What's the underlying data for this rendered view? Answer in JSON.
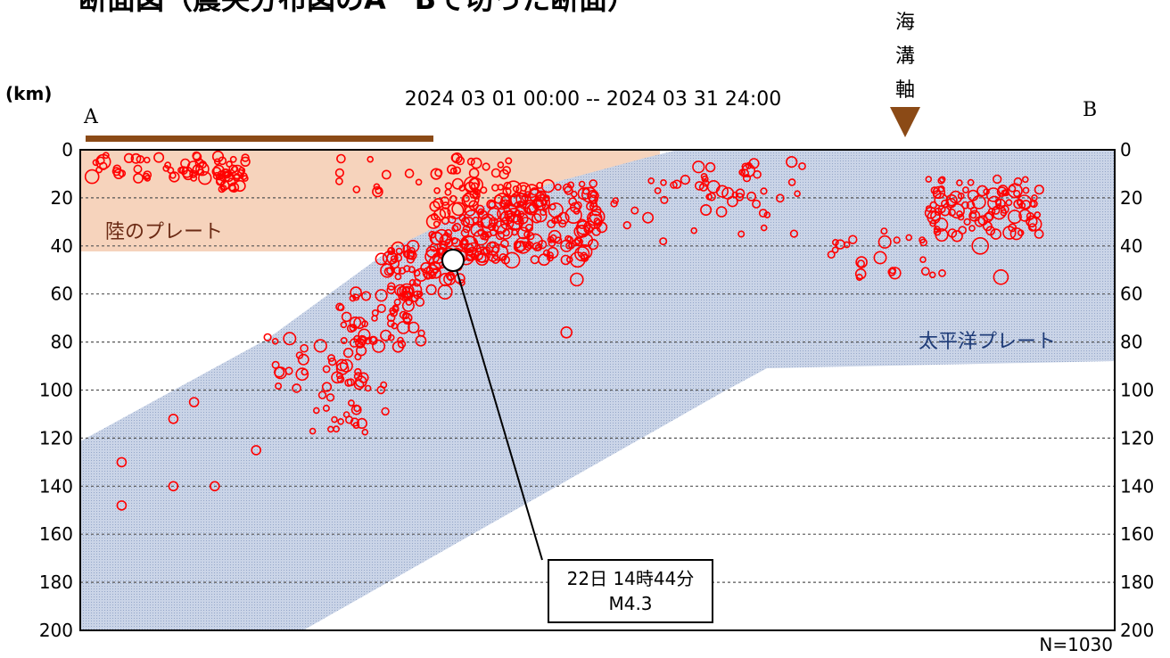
{
  "header": {
    "title": "断面図（震央分布図のA－Bで切った断面）",
    "period": "2024 03 01 00:00 -- 2024 03 31 24:00",
    "trench_label": [
      "海",
      "溝",
      "軸"
    ],
    "unit_label": "(km)",
    "point_a": "A",
    "point_b": "B"
  },
  "labels": {
    "land_plate": "陸のプレート",
    "pacific_plate": "太平洋プレート",
    "count": "N=1030"
  },
  "callout": {
    "line1": "22日 14時44分",
    "line2": "M4.3",
    "event_depth_km": 46
  },
  "colors": {
    "land_plate_fill": "#f6d3bc",
    "pacific_plate_fill": "#b9c6dc",
    "land_bar": "#8b4a16",
    "trench_marker": "#8b4a16",
    "quake": "#ff0000",
    "land_label": "#6b2a14",
    "pacific_label": "#1f3c78"
  },
  "chart_data": {
    "type": "scatter",
    "y_axis_title": "(km)",
    "ylim": [
      0,
      200
    ],
    "y_inverted": true,
    "y_ticks": [
      "0",
      "20",
      "40",
      "60",
      "80",
      "100",
      "120",
      "140",
      "160",
      "180",
      "200"
    ],
    "grid": "horizontal dashed",
    "clusters": [
      {
        "n": 55,
        "x": [
          0.01,
          0.16
        ],
        "y": [
          2,
          12
        ],
        "r": [
          3,
          8
        ]
      },
      {
        "n": 25,
        "x": [
          0.13,
          0.16
        ],
        "y": [
          8,
          20
        ],
        "r": [
          3,
          6
        ]
      },
      {
        "n": 30,
        "x": [
          0.25,
          0.42
        ],
        "y": [
          3,
          18
        ],
        "r": [
          3,
          6
        ]
      },
      {
        "n": 35,
        "x": [
          0.55,
          0.7
        ],
        "y": [
          5,
          20
        ],
        "r": [
          3,
          7
        ]
      },
      {
        "n": 260,
        "x": [
          0.34,
          0.5
        ],
        "y": [
          14,
          46
        ],
        "r": [
          3,
          9
        ]
      },
      {
        "n": 60,
        "x": [
          0.29,
          0.37
        ],
        "y": [
          40,
          62
        ],
        "r": [
          3,
          8
        ]
      },
      {
        "n": 55,
        "x": [
          0.25,
          0.33
        ],
        "y": [
          58,
          82
        ],
        "r": [
          3,
          7
        ]
      },
      {
        "n": 35,
        "x": [
          0.18,
          0.28
        ],
        "y": [
          78,
          100
        ],
        "r": [
          3,
          7
        ]
      },
      {
        "n": 25,
        "x": [
          0.22,
          0.3
        ],
        "y": [
          96,
          120
        ],
        "r": [
          3,
          6
        ]
      },
      {
        "n": 95,
        "x": [
          0.82,
          0.93
        ],
        "y": [
          12,
          36
        ],
        "r": [
          3,
          8
        ]
      },
      {
        "n": 25,
        "x": [
          0.72,
          0.84
        ],
        "y": [
          28,
          54
        ],
        "r": [
          3,
          7
        ]
      },
      {
        "n": 20,
        "x": [
          0.5,
          0.7
        ],
        "y": [
          20,
          40
        ],
        "r": [
          3,
          6
        ]
      }
    ],
    "points": [
      {
        "x": 0.04,
        "y": 148,
        "r": 5
      },
      {
        "x": 0.04,
        "y": 130,
        "r": 5
      },
      {
        "x": 0.09,
        "y": 140,
        "r": 5
      },
      {
        "x": 0.13,
        "y": 140,
        "r": 5
      },
      {
        "x": 0.09,
        "y": 112,
        "r": 5
      },
      {
        "x": 0.11,
        "y": 105,
        "r": 5
      },
      {
        "x": 0.17,
        "y": 125,
        "r": 5
      },
      {
        "x": 0.48,
        "y": 54,
        "r": 7
      },
      {
        "x": 0.47,
        "y": 76,
        "r": 6
      },
      {
        "x": 0.89,
        "y": 53,
        "r": 8
      },
      {
        "x": 0.87,
        "y": 40,
        "r": 9
      }
    ]
  }
}
